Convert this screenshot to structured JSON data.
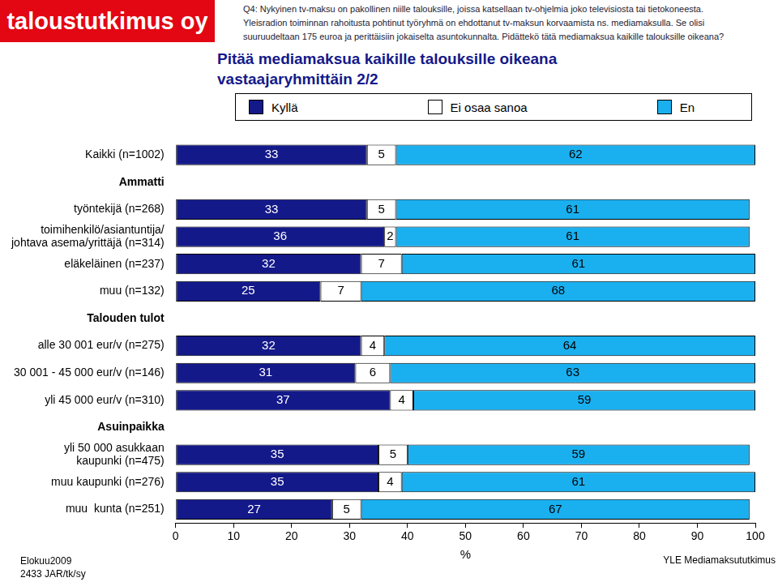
{
  "chart_data": {
    "type": "bar",
    "orientation": "horizontal",
    "stacked": true,
    "data_labels": true,
    "grid": false,
    "legend": "top",
    "logo": "taloustutkimus oy",
    "question": [
      "Q4: Nykyinen tv-maksu on pakollinen niille talouksille, joissa katsellaan tv-ohjelmia joko televisiosta tai tietokoneesta.",
      "Yleisradion toiminnan rahoitusta pohtinut työryhmä on ehdottanut tv-maksun korvaamista ns. mediamaksulla. Se olisi",
      "suuruudeltaan 175 euroa ja perittäisiin jokaiselta asuntokunnalta. Pidättekö tätä mediamaksua kaikille talouksille oikeana?"
    ],
    "title": [
      "Pitää mediamaksua kaikille talouksille oikeana",
      "vastaajaryhmittäin 2/2"
    ],
    "footer_left": [
      "Elokuu2009",
      "2433 JAR/tk/sy"
    ],
    "footer_right": "YLE Mediamaksututkimus",
    "xlabel": "%",
    "categories": [
      "Kaikki (n=1002)",
      "Ammatti",
      "työntekijä (n=268)",
      [
        "toimihenkilö/asiantuntija/",
        "johtava asema/yrittäjä (n=314)"
      ],
      "eläkeläinen (n=237)",
      "muu (n=132)",
      "Talouden tulot",
      "alle 30 001 eur/v (n=275)",
      "30 001 - 45 000 eur/v (n=146)",
      "yli 45 000 eur/v (n=310)",
      "Asuinpaikka",
      [
        "yli 50 000 asukkaan",
        "kaupunki (n=475)"
      ],
      "muu kaupunki (n=276)",
      "muu  kunta (n=251)"
    ],
    "series": [
      {
        "name": "Kyllä",
        "color": "#14198a",
        "values": [
          33,
          null,
          33,
          36,
          32,
          25,
          null,
          32,
          31,
          37,
          null,
          35,
          35,
          27
        ]
      },
      {
        "name": "Ei osaa sanoa",
        "color": "#ffffff",
        "values": [
          5,
          null,
          5,
          2,
          7,
          7,
          null,
          4,
          6,
          4,
          null,
          5,
          4,
          5
        ]
      },
      {
        "name": "En",
        "color": "#1ab0f0",
        "values": [
          62,
          null,
          61,
          61,
          61,
          68,
          null,
          64,
          63,
          59,
          null,
          59,
          61,
          67
        ]
      }
    ],
    "xlim": [
      0,
      100
    ],
    "xticks": [
      0,
      10,
      20,
      30,
      40,
      50,
      60,
      70,
      80,
      90,
      100
    ]
  }
}
